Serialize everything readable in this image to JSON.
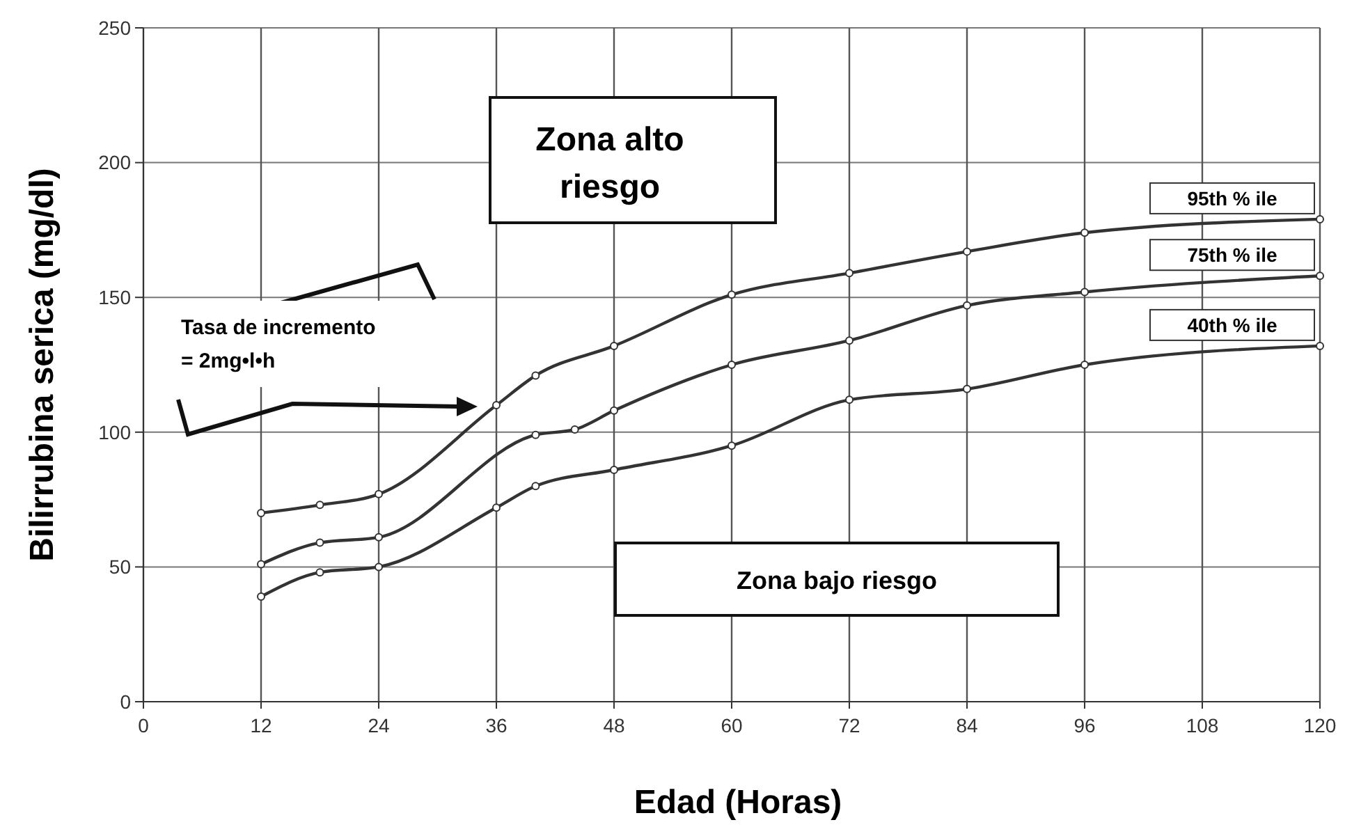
{
  "chart_data": {
    "type": "line",
    "xlabel": "Edad (Horas)",
    "ylabel": "Bilirrubina serica (mg/dl)",
    "xlim": [
      0,
      120
    ],
    "xticks": [
      0,
      12,
      24,
      36,
      48,
      60,
      72,
      84,
      96,
      108,
      120
    ],
    "ylim": [
      0,
      250
    ],
    "yticks": [
      0,
      50,
      100,
      150,
      200,
      250
    ],
    "grid": true,
    "marker": "circle",
    "line_style": "solid",
    "annotations": [
      "Zona alto riesgo",
      "Zona bajo riesgo",
      "Tasa de incremento = 2mg•l•h"
    ],
    "series": [
      {
        "name": "95th % ile",
        "color": "#333333",
        "x": [
          12,
          18,
          24,
          36,
          40,
          48,
          60,
          72,
          84,
          96,
          120
        ],
        "values": [
          70,
          73,
          77,
          110,
          121,
          132,
          151,
          159,
          167,
          174,
          179
        ]
      },
      {
        "name": "75th % ile",
        "color": "#333333",
        "x": [
          12,
          18,
          24,
          40,
          44,
          48,
          60,
          72,
          84,
          96,
          120
        ],
        "values": [
          51,
          59,
          61,
          99,
          101,
          108,
          125,
          134,
          147,
          152,
          158
        ]
      },
      {
        "name": "40th % ile",
        "color": "#333333",
        "x": [
          12,
          18,
          24,
          36,
          40,
          48,
          60,
          72,
          84,
          96,
          120
        ],
        "values": [
          39,
          48,
          50,
          72,
          80,
          86,
          95,
          112,
          116,
          125,
          132
        ]
      }
    ]
  }
}
